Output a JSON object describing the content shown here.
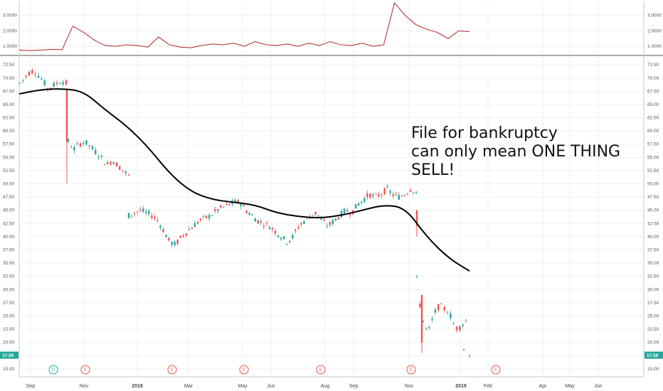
{
  "chart_data": {
    "type": "candlestick",
    "colors": {
      "up": "#26a69a",
      "down": "#ef5350",
      "ma": "#000000",
      "indicator": "#b22222",
      "price_tag": "#26a69a",
      "dividend": "#26a69a",
      "earnings": "#ef5350"
    },
    "annotation": [
      "File for bankruptcy",
      "can only mean ONE THING",
      "SELL!"
    ],
    "last_price_label": "17.59",
    "x_axis": {
      "labels": [
        {
          "text": "Sep",
          "bold": false
        },
        {
          "text": "Nov",
          "bold": false
        },
        {
          "text": "2018",
          "bold": true
        },
        {
          "text": "Mar",
          "bold": false
        },
        {
          "text": "May",
          "bold": false
        },
        {
          "text": "Jun",
          "bold": false
        },
        {
          "text": "Aug",
          "bold": false
        },
        {
          "text": "Sep",
          "bold": false
        },
        {
          "text": "Nov",
          "bold": false
        },
        {
          "text": "2019",
          "bold": true
        },
        {
          "text": "Feb",
          "bold": false
        },
        {
          "text": "Apr",
          "bold": false
        },
        {
          "text": "May",
          "bold": false
        },
        {
          "text": "Jun",
          "bold": false
        }
      ]
    },
    "events": [
      {
        "letter": "D",
        "type": "dividend"
      },
      {
        "letter": "E",
        "type": "earnings"
      },
      {
        "letter": "E",
        "type": "earnings"
      },
      {
        "letter": "E",
        "type": "earnings"
      },
      {
        "letter": "E",
        "type": "earnings"
      },
      {
        "letter": "E",
        "type": "earnings"
      },
      {
        "letter": "E",
        "type": "earnings"
      }
    ],
    "main_pane": {
      "ylim": [
        13.5,
        74
      ],
      "tick_labels": [
        "72.50",
        "70.00",
        "67.50",
        "65.00",
        "62.50",
        "60.00",
        "57.50",
        "55.00",
        "52.50",
        "50.00",
        "47.50",
        "45.00",
        "42.50",
        "40.00",
        "37.50",
        "35.00",
        "32.50",
        "30.00",
        "27.50",
        "25.00",
        "22.50",
        "20.00",
        "17.50",
        "15.00"
      ],
      "price_segments": [
        [
          69,
          70,
          71,
          71.5,
          70.5,
          69.5,
          68,
          68.5,
          69,
          69.5,
          69
        ],
        [
          58,
          56.5,
          57.5,
          58,
          57,
          56,
          55,
          53.5,
          54.5,
          53.5,
          52.5,
          51.5
        ],
        [
          44,
          44.5,
          45,
          44.5,
          44,
          43,
          41,
          39,
          38.5,
          40,
          41,
          42,
          43,
          43.5,
          44,
          45,
          45.5,
          46,
          46.5,
          46.5,
          45,
          44,
          43,
          42.5,
          42,
          41,
          40,
          39,
          40,
          42,
          43,
          44,
          44.5,
          43,
          42,
          43,
          44,
          45,
          44.5,
          46,
          47,
          48,
          47.5,
          48,
          49,
          48,
          47.5,
          48,
          49,
          48.5
        ],
        [
          32,
          26,
          23,
          22,
          24,
          26,
          27,
          26.5,
          26,
          25,
          23,
          22.5,
          23.5,
          24
        ],
        [
          19,
          18.5,
          17.5
        ]
      ],
      "moving_average": [
        67,
        67.8,
        68,
        67.5,
        64,
        61,
        57,
        52,
        48.5,
        47,
        46.5,
        46,
        44.5,
        43.8,
        43.5,
        44,
        45,
        46,
        45.5,
        40,
        36,
        33.5
      ]
    },
    "indicator_pane": {
      "ylim": [
        0.5,
        3.9
      ],
      "tick_labels": [
        "3.0000",
        "2.0000",
        "1.0000"
      ],
      "values": [
        0.75,
        0.72,
        0.76,
        0.8,
        0.78,
        2.3,
        1.9,
        1.4,
        1.05,
        1.0,
        1.1,
        1.05,
        0.95,
        1.6,
        1.1,
        0.95,
        0.9,
        1.05,
        1.15,
        1.1,
        1.2,
        1.0,
        1.3,
        1.1,
        1.05,
        1.15,
        1.0,
        1.2,
        1.05,
        1.3,
        1.1,
        1.05,
        1.2,
        1.0,
        1.1,
        3.8,
        3.0,
        2.4,
        2.1,
        1.9,
        1.5,
        2.0,
        1.95
      ]
    }
  }
}
